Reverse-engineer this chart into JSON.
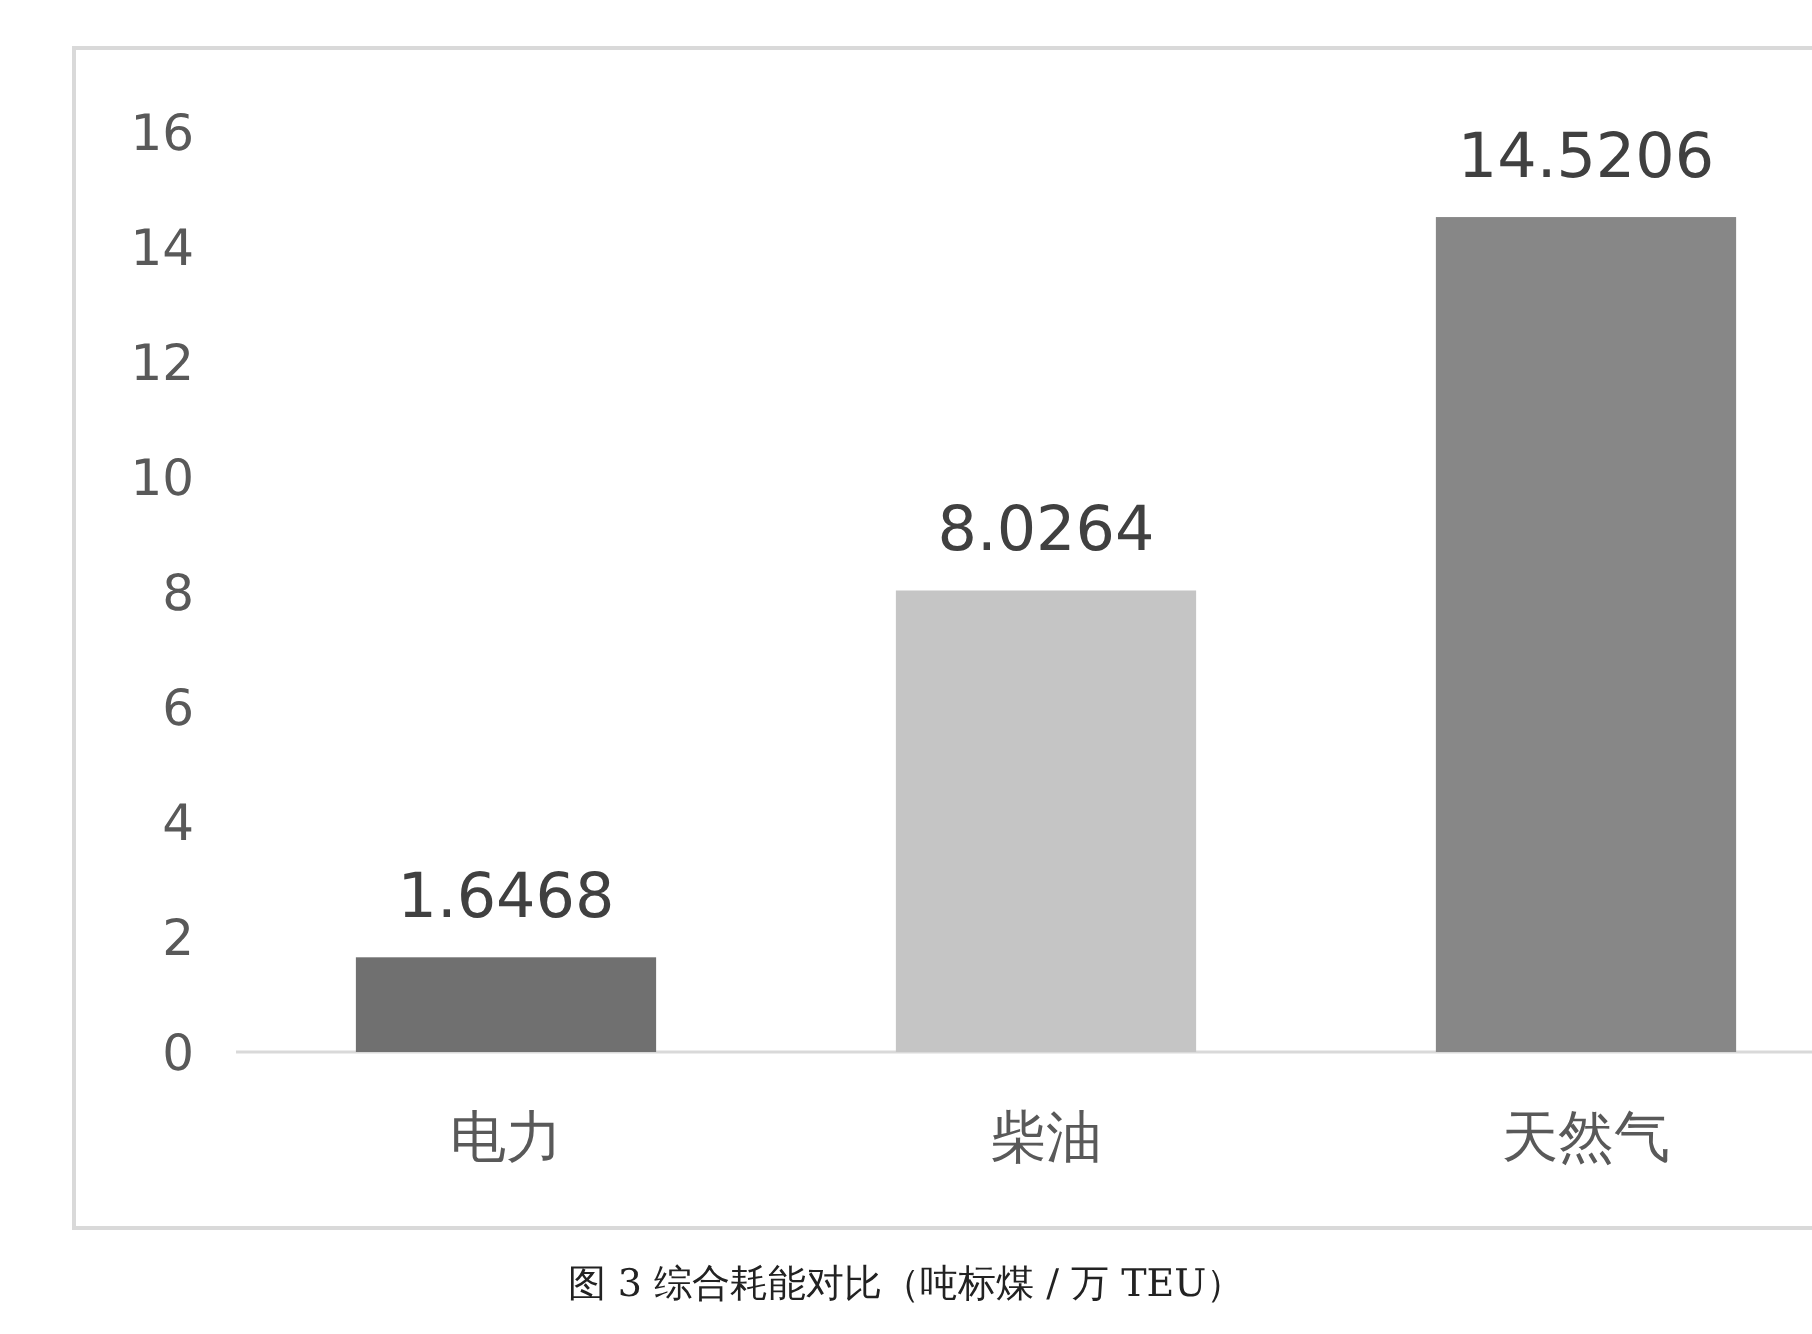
{
  "chart_data": {
    "type": "bar",
    "title": "图 3 综合耗能对比（吨标煤 / 万 TEU）",
    "categories": [
      "电力",
      "柴油",
      "天然气"
    ],
    "values": [
      1.6468,
      8.0264,
      14.5206
    ],
    "colors": [
      "#707070",
      "#c5c5c5",
      "#878787"
    ],
    "ylim": [
      0,
      16
    ],
    "yticks": [
      0,
      2,
      4,
      6,
      8,
      10,
      12,
      14,
      16
    ],
    "data_labels": true,
    "grid": false
  }
}
